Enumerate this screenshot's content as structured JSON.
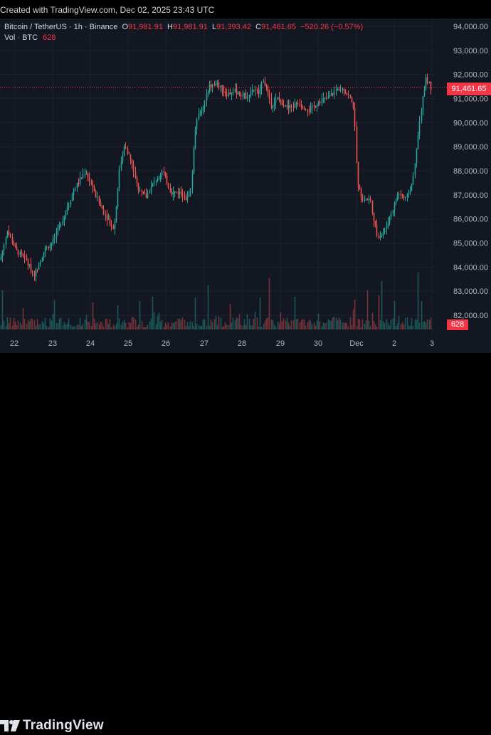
{
  "header": {
    "created_text": "Created with TradingView.com, Dec 02, 2025 23:43 UTC"
  },
  "legend": {
    "symbol": "Bitcoin / TetherUS · 1h · Binance",
    "open_label": "O",
    "open_value": "91,981.91",
    "high_label": "H",
    "high_value": "91,981.91",
    "low_label": "L",
    "low_value": "91,393.42",
    "close_label": "C",
    "close_value": "91,461.65",
    "change": "−520.26 (−0.57%)"
  },
  "volume": {
    "label": "Vol · BTC",
    "value": "628"
  },
  "price_tag": "91,461.65",
  "volume_tag": "628",
  "footer": {
    "brand": "TradingView"
  },
  "colors": {
    "up": "#26a69a",
    "down": "#ef5350",
    "accent": "#f23645",
    "background": "#131722"
  },
  "chart_data": {
    "type": "candlestick",
    "y_ticks": [
      "94,000.00",
      "93,000.00",
      "92,000.00",
      "91,000.00",
      "90,000.00",
      "89,000.00",
      "88,000.00",
      "87,000.00",
      "86,000.00",
      "85,000.00",
      "84,000.00",
      "83,000.00",
      "82,000.00"
    ],
    "x_ticks": [
      "22",
      "23",
      "24",
      "25",
      "26",
      "27",
      "28",
      "29",
      "30",
      "Dec",
      "2",
      "3"
    ],
    "ylim": [
      81800,
      94200
    ],
    "last_price": 91461.65,
    "anchors": [
      [
        0,
        84300
      ],
      [
        10,
        85500
      ],
      [
        22,
        84700
      ],
      [
        35,
        84300
      ],
      [
        48,
        83700
      ],
      [
        62,
        84700
      ],
      [
        75,
        85100
      ],
      [
        90,
        86200
      ],
      [
        105,
        87300
      ],
      [
        120,
        88000
      ],
      [
        130,
        87200
      ],
      [
        145,
        86300
      ],
      [
        160,
        85600
      ],
      [
        168,
        88200
      ],
      [
        175,
        89100
      ],
      [
        185,
        88300
      ],
      [
        195,
        87100
      ],
      [
        205,
        86900
      ],
      [
        215,
        87500
      ],
      [
        228,
        88000
      ],
      [
        240,
        87100
      ],
      [
        255,
        87100
      ],
      [
        262,
        86800
      ],
      [
        268,
        87300
      ],
      [
        275,
        90200
      ],
      [
        285,
        90600
      ],
      [
        293,
        91500
      ],
      [
        305,
        91600
      ],
      [
        318,
        91200
      ],
      [
        330,
        91300
      ],
      [
        345,
        91100
      ],
      [
        355,
        91400
      ],
      [
        363,
        91200
      ],
      [
        370,
        91800
      ],
      [
        375,
        91300
      ],
      [
        380,
        90700
      ],
      [
        390,
        91000
      ],
      [
        405,
        90600
      ],
      [
        420,
        90800
      ],
      [
        435,
        90500
      ],
      [
        448,
        90900
      ],
      [
        460,
        91000
      ],
      [
        470,
        91300
      ],
      [
        480,
        91500
      ],
      [
        490,
        91100
      ],
      [
        497,
        90600
      ],
      [
        502,
        87400
      ],
      [
        510,
        86800
      ],
      [
        520,
        86800
      ],
      [
        530,
        85200
      ],
      [
        540,
        85500
      ],
      [
        550,
        86300
      ],
      [
        560,
        87100
      ],
      [
        570,
        86800
      ],
      [
        580,
        87600
      ],
      [
        590,
        90200
      ],
      [
        598,
        91900
      ],
      [
        605,
        91450
      ]
    ],
    "volume_spikes": [
      [
        3,
        55
      ],
      [
        30,
        30
      ],
      [
        75,
        35
      ],
      [
        128,
        38
      ],
      [
        165,
        34
      ],
      [
        196,
        40
      ],
      [
        213,
        46
      ],
      [
        272,
        45
      ],
      [
        290,
        62
      ],
      [
        322,
        36
      ],
      [
        365,
        45
      ],
      [
        378,
        72
      ],
      [
        412,
        46
      ],
      [
        498,
        42
      ],
      [
        515,
        55
      ],
      [
        530,
        48
      ],
      [
        535,
        68
      ],
      [
        552,
        40
      ],
      [
        586,
        80
      ],
      [
        591,
        40
      ]
    ]
  }
}
